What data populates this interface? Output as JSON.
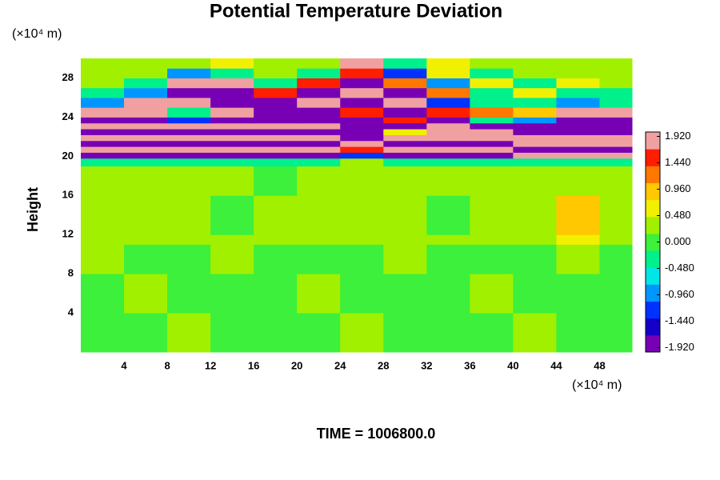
{
  "chart_data": {
    "type": "heatmap",
    "title": "Potential Temperature Deviation",
    "x_unit_label": "(×10⁴ m)",
    "y_unit_label": "(×10⁴ m)",
    "ylabel": "Height",
    "footer": "TIME = 1006800.0",
    "xlim": [
      0,
      51
    ],
    "ylim": [
      0,
      30
    ],
    "xticks": [
      4,
      8,
      12,
      16,
      20,
      24,
      28,
      32,
      36,
      40,
      44,
      48
    ],
    "yticks": [
      4,
      8,
      12,
      16,
      20,
      24,
      28
    ],
    "x_bins": [
      0,
      4,
      8,
      12,
      16,
      20,
      24,
      28,
      32,
      36,
      40,
      44,
      48,
      51
    ],
    "y_bins": [
      0,
      4,
      8,
      11,
      12,
      16,
      19,
      19.8,
      20.4,
      21,
      21.6,
      22.2,
      22.8,
      23.4,
      24,
      25,
      26,
      27,
      28,
      29,
      30
    ],
    "z": [
      [
        0.1,
        0.1,
        0.2,
        0.1,
        0.1,
        0.1,
        0.2,
        0.1,
        0.1,
        0.1,
        0.2,
        0.1,
        0.1
      ],
      [
        0.1,
        0.2,
        0.1,
        0.1,
        0.1,
        0.2,
        0.1,
        0.1,
        0.1,
        0.2,
        0.1,
        0.1,
        0.1
      ],
      [
        0.2,
        0.1,
        0.1,
        0.2,
        0.1,
        0.1,
        0.1,
        0.2,
        0.1,
        0.1,
        0.1,
        0.2,
        0.1
      ],
      [
        0.3,
        0.3,
        0.2,
        0.3,
        0.3,
        0.4,
        0.3,
        0.3,
        0.4,
        0.3,
        0.4,
        0.6,
        0.4
      ],
      [
        0.2,
        0.3,
        0.2,
        0.1,
        0.2,
        0.2,
        0.3,
        0.2,
        0.1,
        0.2,
        0.2,
        0.9,
        0.3
      ],
      [
        0.3,
        0.2,
        0.3,
        0.2,
        0.1,
        0.2,
        0.3,
        0.2,
        0.2,
        0.3,
        0.2,
        0.2,
        0.2
      ],
      [
        -0.3,
        -0.2,
        -0.3,
        -0.2,
        -0.2,
        -0.3,
        0.4,
        -0.2,
        -0.3,
        -0.2,
        -0.3,
        -0.2,
        -0.3
      ],
      [
        -1.9,
        -1.9,
        -1.9,
        -1.9,
        -1.9,
        -1.9,
        -1.5,
        -1.9,
        -1.9,
        -1.9,
        1.9,
        1.9,
        1.9
      ],
      [
        1.9,
        1.9,
        1.9,
        1.9,
        1.9,
        1.9,
        1.5,
        1.9,
        1.9,
        1.9,
        -1.9,
        -1.9,
        -1.9
      ],
      [
        -1.9,
        -1.9,
        -1.9,
        -1.9,
        -1.9,
        -1.9,
        1.9,
        -1.9,
        -1.9,
        -1.9,
        1.9,
        1.9,
        1.9
      ],
      [
        1.9,
        1.9,
        1.9,
        1.9,
        1.9,
        1.9,
        -1.9,
        1.9,
        1.9,
        1.9,
        1.9,
        1.9,
        1.9
      ],
      [
        -1.9,
        -1.9,
        -1.9,
        -1.9,
        -1.9,
        -1.9,
        -1.9,
        0.5,
        1.9,
        1.9,
        -1.9,
        -1.9,
        -1.9
      ],
      [
        1.9,
        1.9,
        1.9,
        1.9,
        1.9,
        1.9,
        -1.9,
        -1.9,
        1.9,
        -1.9,
        -1.9,
        -1.9,
        -1.9
      ],
      [
        -1.9,
        -1.9,
        -1.5,
        -1.9,
        -1.9,
        -1.9,
        -1.9,
        1.5,
        -1.9,
        -0.5,
        -1.0,
        -1.9,
        -1.9
      ],
      [
        1.9,
        1.9,
        -0.5,
        1.9,
        -1.9,
        -1.9,
        1.5,
        -1.9,
        1.5,
        1.2,
        1.0,
        1.9,
        1.9
      ],
      [
        -1.0,
        1.9,
        1.9,
        -1.9,
        -1.9,
        1.9,
        -1.9,
        1.9,
        -1.5,
        -0.5,
        -0.5,
        -1.0,
        -0.5
      ],
      [
        -0.5,
        -1.0,
        -1.9,
        -1.9,
        1.5,
        -1.9,
        1.9,
        -1.9,
        1.2,
        -0.5,
        0.5,
        -0.5,
        -0.5
      ],
      [
        0.2,
        -0.5,
        1.9,
        1.9,
        -0.5,
        1.5,
        -1.9,
        1.2,
        -1.0,
        0.5,
        -0.5,
        0.5,
        0.2
      ],
      [
        0.2,
        0.3,
        -1.0,
        -0.5,
        0.2,
        -0.5,
        1.5,
        -1.5,
        0.8,
        -0.5,
        0.3,
        0.2,
        0.3
      ],
      [
        0.3,
        0.2,
        0.3,
        0.5,
        0.2,
        0.3,
        1.9,
        -0.5,
        0.5,
        0.2,
        0.3,
        0.2,
        0.3
      ]
    ],
    "zlim": [
      -2,
      2
    ],
    "zticks": [
      {
        "value": 1.92,
        "label": "1.920"
      },
      {
        "value": 1.44,
        "label": "1.440"
      },
      {
        "value": 0.96,
        "label": "0.960"
      },
      {
        "value": 0.48,
        "label": "0.480"
      },
      {
        "value": 0,
        "label": "0.000"
      },
      {
        "value": -0.48,
        "label": "-0.480"
      },
      {
        "value": -0.96,
        "label": "-0.960"
      },
      {
        "value": -1.44,
        "label": "-1.440"
      },
      {
        "value": -1.92,
        "label": "-1.920"
      }
    ],
    "colormap": [
      "#7800b4",
      "#1400c8",
      "#0032ff",
      "#0096ff",
      "#00e6e6",
      "#00f08c",
      "#3cf03c",
      "#a0f000",
      "#f0f000",
      "#ffc800",
      "#ff7800",
      "#ff1e00",
      "#f0a0a0"
    ]
  }
}
